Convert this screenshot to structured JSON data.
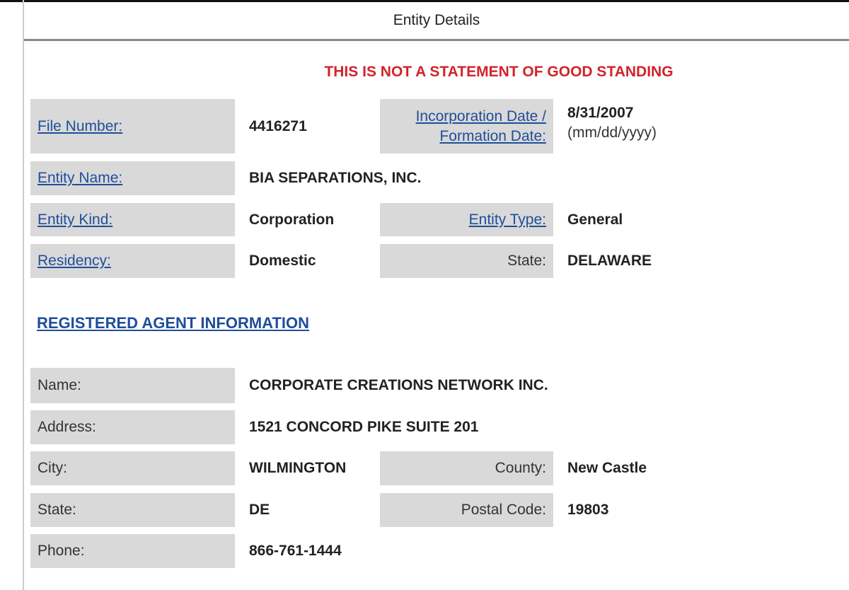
{
  "header": {
    "title": "Entity Details"
  },
  "warning": "THIS IS NOT A STATEMENT OF GOOD STANDING",
  "entity": {
    "file_number_label": "File Number:",
    "file_number": "4416271",
    "inc_date_label_1": "Incorporation Date /",
    "inc_date_label_2": "Formation Date:",
    "inc_date": "8/31/2007",
    "inc_date_format": "(mm/dd/yyyy)",
    "name_label": "Entity Name:",
    "name": "BIA SEPARATIONS, INC.",
    "kind_label": "Entity Kind:",
    "kind": "Corporation",
    "type_label": "Entity Type:",
    "type": "General",
    "residency_label": "Residency:",
    "residency": "Domestic",
    "state_label": "State:",
    "state": "DELAWARE"
  },
  "agent": {
    "section_title": "REGISTERED AGENT INFORMATION",
    "name_label": "Name:",
    "name": "CORPORATE CREATIONS NETWORK INC.",
    "address_label": "Address:",
    "address": "1521 CONCORD PIKE SUITE 201",
    "city_label": "City:",
    "city": "WILMINGTON",
    "county_label": "County:",
    "county": "New Castle",
    "state_label": "State:",
    "state": "DE",
    "postal_label": "Postal Code:",
    "postal": "19803",
    "phone_label": "Phone:",
    "phone": "866-761-1444"
  }
}
